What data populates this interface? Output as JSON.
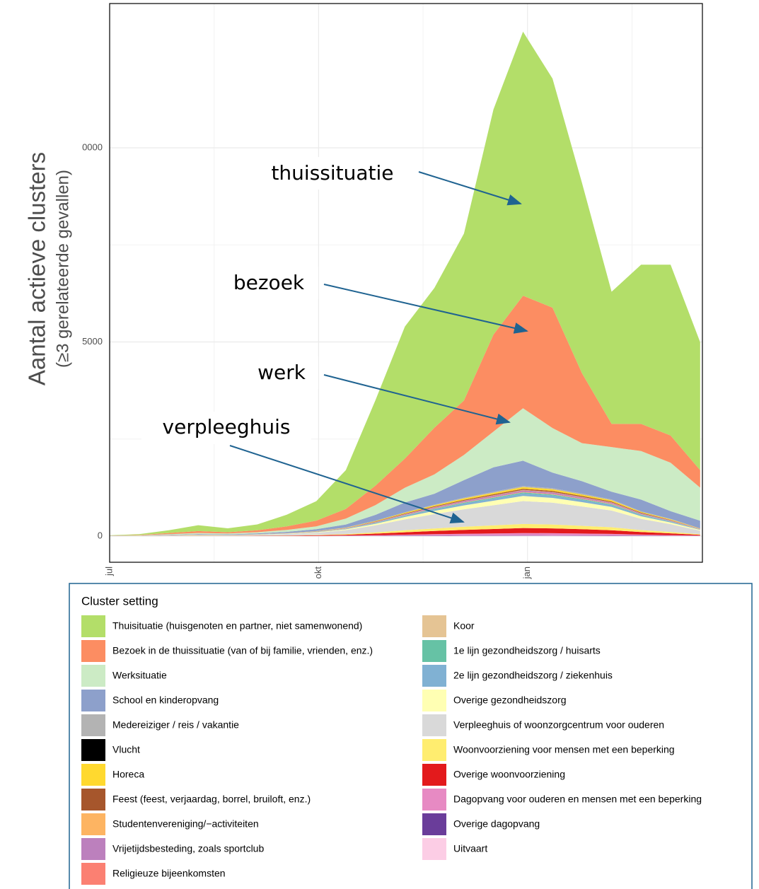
{
  "chart_data": {
    "type": "stacked-area",
    "y_label": "Aantal actieve clusters",
    "y_sublabel": "(≥3 gerelateerde gevallen)",
    "legend_title": "Cluster setting",
    "annotations": [
      "thuissituatie",
      "bezoek",
      "werk",
      "verpleeghuis"
    ],
    "x": [
      0,
      13,
      26,
      39,
      52,
      65,
      78,
      91,
      104,
      117,
      130,
      143,
      156,
      169,
      182,
      195,
      208,
      221,
      234,
      247,
      260
    ],
    "xlim": [
      0,
      261
    ],
    "xticks": [
      {
        "value": 0,
        "label": "jul"
      },
      {
        "value": 92,
        "label": "okt"
      },
      {
        "value": 184,
        "label": "jan"
      }
    ],
    "ylim": [
      -674,
      13716
    ],
    "yticks": [
      0,
      5000,
      {
        "value": 10000,
        "label": "0000"
      }
    ],
    "grid": true,
    "series": [
      {
        "name": "Thuisituatie (huisgenoten en partner, niet samenwonend)",
        "color": "#b3de69",
        "values": [
          5,
          20,
          70,
          150,
          100,
          150,
          300,
          500,
          1000,
          2200,
          3400,
          3600,
          4300,
          5800,
          6800,
          5900,
          4900,
          3400,
          4100,
          4400,
          3300
        ]
      },
      {
        "name": "Bezoek in de thuissituatie (van of bij familie, vrienden, enz.)",
        "color": "#fc8d62",
        "values": [
          5,
          10,
          30,
          50,
          30,
          50,
          90,
          150,
          250,
          500,
          750,
          1200,
          1400,
          2500,
          2900,
          3100,
          1800,
          600,
          700,
          700,
          450
        ]
      },
      {
        "name": "Werksituatie",
        "color": "#ccebc5",
        "values": [
          2,
          5,
          15,
          25,
          25,
          30,
          50,
          70,
          150,
          250,
          380,
          500,
          650,
          920,
          1350,
          1150,
          980,
          1150,
          1250,
          1250,
          850
        ]
      },
      {
        "name": "School en kinderopvang",
        "color": "#8da0cb",
        "values": [
          2,
          5,
          10,
          15,
          10,
          20,
          30,
          50,
          80,
          150,
          250,
          280,
          450,
          630,
          650,
          400,
          320,
          200,
          300,
          200,
          200
        ]
      },
      {
        "name": "Medereiziger / reis / vakantie",
        "color": "#b3b3b3",
        "values": [
          1,
          1,
          2,
          2,
          2,
          2,
          2,
          4,
          5,
          8,
          12,
          16,
          20,
          23,
          26,
          25,
          22,
          19,
          13,
          9,
          4
        ]
      },
      {
        "name": "Vlucht",
        "color": "#000000",
        "values": [
          0,
          0,
          0,
          0,
          0,
          0,
          0,
          0,
          0,
          1,
          1,
          1,
          1,
          1,
          1,
          1,
          1,
          1,
          1,
          0,
          0
        ]
      },
      {
        "name": "Horeca",
        "color": "#ffd92f",
        "values": [
          1,
          1,
          2,
          2,
          2,
          2,
          3,
          5,
          8,
          14,
          22,
          28,
          35,
          40,
          45,
          43,
          38,
          33,
          22,
          16,
          7
        ]
      },
      {
        "name": "Feest (feest, verjaardag, borrel, bruiloft, enz.)",
        "color": "#a6562c",
        "values": [
          0,
          0,
          1,
          1,
          1,
          1,
          2,
          3,
          5,
          9,
          14,
          18,
          22,
          25,
          28,
          27,
          24,
          21,
          14,
          10,
          4
        ]
      },
      {
        "name": "Studentenvereniging/−activiteiten",
        "color": "#fdb462",
        "values": [
          0,
          0,
          0,
          0,
          0,
          0,
          0,
          1,
          1,
          3,
          5,
          6,
          8,
          9,
          10,
          10,
          9,
          8,
          5,
          3,
          1
        ]
      },
      {
        "name": "Vrijetijdsbesteding, zoals sportclub",
        "color": "#bc80bd",
        "values": [
          0,
          0,
          1,
          1,
          1,
          2,
          3,
          4,
          7,
          12,
          19,
          25,
          30,
          35,
          39,
          38,
          33,
          29,
          20,
          14,
          6
        ]
      },
      {
        "name": "Religieuze bijeenkomsten",
        "color": "#fb8072",
        "values": [
          0,
          0,
          0,
          0,
          0,
          1,
          1,
          1,
          2,
          4,
          6,
          8,
          10,
          11,
          13,
          12,
          11,
          9,
          6,
          4,
          2
        ]
      },
      {
        "name": "Koor",
        "color": "#e5c494",
        "values": [
          0,
          0,
          0,
          0,
          0,
          0,
          0,
          1,
          1,
          2,
          3,
          4,
          5,
          6,
          6,
          6,
          5,
          5,
          3,
          2,
          1
        ]
      },
      {
        "name": "1e lijn gezondheidszorg / huisarts",
        "color": "#66c2a5",
        "values": [
          0,
          0,
          0,
          1,
          1,
          1,
          2,
          3,
          4,
          8,
          12,
          16,
          20,
          23,
          26,
          25,
          22,
          19,
          13,
          9,
          4
        ]
      },
      {
        "name": "2e lijn gezondheidszorg / ziekenhuis",
        "color": "#80b1d3",
        "values": [
          0,
          0,
          1,
          2,
          2,
          2,
          4,
          6,
          11,
          20,
          31,
          41,
          50,
          57,
          65,
          62,
          55,
          47,
          32,
          22,
          10
        ]
      },
      {
        "name": "Overige gezondheidszorg",
        "color": "#ffffb3",
        "values": [
          1,
          1,
          3,
          4,
          4,
          5,
          8,
          13,
          22,
          40,
          62,
          82,
          100,
          115,
          130,
          125,
          110,
          95,
          65,
          45,
          20
        ]
      },
      {
        "name": "Verpleeghuis of woonzorgcentrum voor ouderen",
        "color": "#d9d9d9",
        "values": [
          2,
          4,
          10,
          18,
          15,
          22,
          36,
          58,
          100,
          180,
          280,
          370,
          450,
          520,
          590,
          560,
          500,
          430,
          290,
          200,
          90
        ]
      },
      {
        "name": "Woonvoorziening voor mensen met een beperking",
        "color": "#ffed6f",
        "values": [
          0,
          1,
          2,
          3,
          3,
          4,
          6,
          10,
          18,
          32,
          50,
          65,
          80,
          92,
          104,
          100,
          88,
          76,
          52,
          36,
          16
        ]
      },
      {
        "name": "Overige woonvoorziening",
        "color": "#e31a1c",
        "values": [
          1,
          1,
          2,
          4,
          3,
          5,
          8,
          13,
          22,
          40,
          62,
          82,
          100,
          115,
          130,
          125,
          110,
          95,
          65,
          45,
          20
        ]
      },
      {
        "name": "Dagopvang voor ouderen en mensen met een beperking",
        "color": "#e78ac3",
        "values": [
          0,
          1,
          1,
          2,
          1,
          2,
          3,
          5,
          9,
          16,
          25,
          33,
          40,
          46,
          52,
          50,
          44,
          38,
          26,
          18,
          8
        ]
      },
      {
        "name": "Overige dagopvang",
        "color": "#6a3d9a",
        "values": [
          0,
          0,
          0,
          0,
          0,
          1,
          1,
          1,
          2,
          4,
          6,
          8,
          10,
          11,
          13,
          12,
          11,
          9,
          6,
          4,
          2
        ]
      },
      {
        "name": "Uitvaart",
        "color": "#fccde5",
        "values": [
          0,
          0,
          0,
          0,
          0,
          1,
          1,
          1,
          2,
          4,
          6,
          8,
          10,
          11,
          13,
          12,
          11,
          9,
          6,
          4,
          2
        ]
      }
    ]
  }
}
